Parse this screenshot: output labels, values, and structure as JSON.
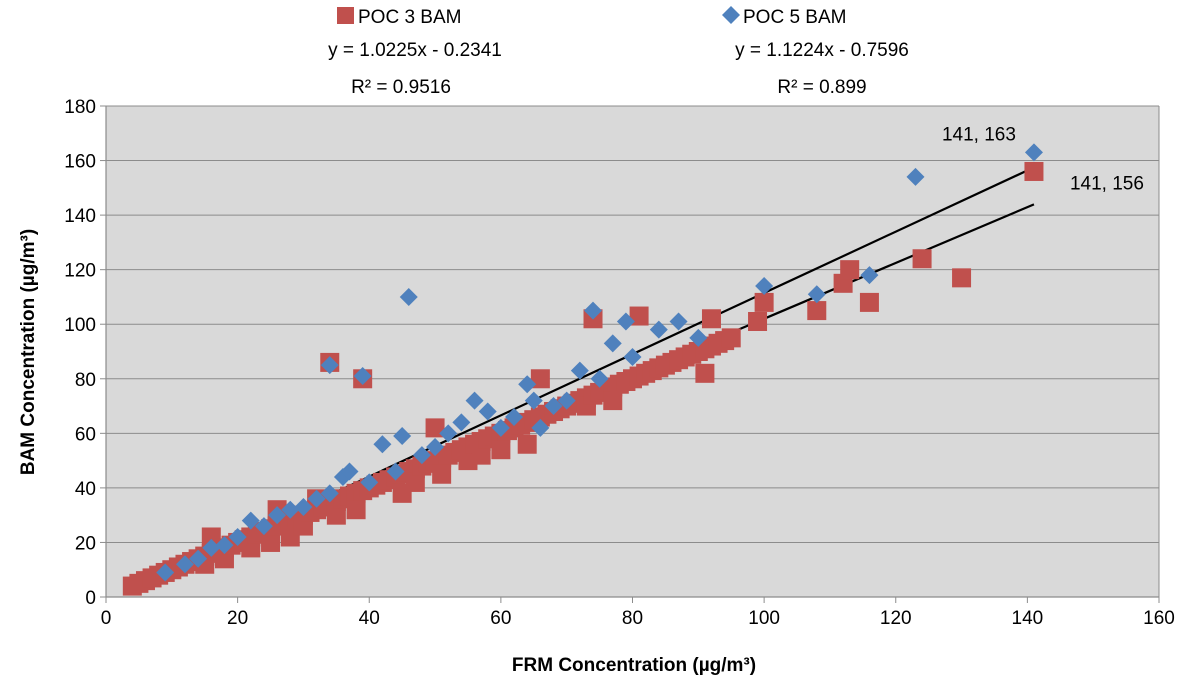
{
  "chart_data": {
    "type": "scatter",
    "xlabel": "FRM Concentration (µg/m³)",
    "ylabel": "BAM Concentration (µg/m³)",
    "xlim": [
      0,
      160
    ],
    "ylim": [
      0,
      180
    ],
    "xticks": [
      "0",
      "20",
      "40",
      "60",
      "80",
      "100",
      "120",
      "140",
      "160"
    ],
    "yticks": [
      "0",
      "20",
      "40",
      "60",
      "80",
      "100",
      "120",
      "140",
      "160",
      "180"
    ],
    "grid": true,
    "legend_position": "top",
    "colors": {
      "plot_bg": "#d9d9d9",
      "poc3": "#c0504d",
      "poc5": "#4f81bd",
      "trend": "#000000"
    },
    "series": [
      {
        "name": "POC 3 BAM",
        "marker": "square",
        "equation": "y = 1.0225x - 0.2341",
        "r2": "R² = 0.9516",
        "trend": {
          "slope": 1.0225,
          "intercept": -0.2341,
          "x_range": [
            4,
            141
          ]
        },
        "points": [
          [
            4,
            4
          ],
          [
            5,
            5
          ],
          [
            6,
            6
          ],
          [
            7,
            7
          ],
          [
            8,
            8
          ],
          [
            9,
            9
          ],
          [
            10,
            10
          ],
          [
            11,
            11
          ],
          [
            12,
            12
          ],
          [
            13,
            13
          ],
          [
            14,
            14
          ],
          [
            15,
            12
          ],
          [
            15,
            15
          ],
          [
            16,
            16
          ],
          [
            16,
            22
          ],
          [
            17,
            17
          ],
          [
            18,
            18
          ],
          [
            18,
            14
          ],
          [
            19,
            19
          ],
          [
            20,
            20
          ],
          [
            21,
            21
          ],
          [
            22,
            22
          ],
          [
            22,
            18
          ],
          [
            23,
            23
          ],
          [
            24,
            24
          ],
          [
            25,
            25
          ],
          [
            25,
            20
          ],
          [
            26,
            26
          ],
          [
            26,
            32
          ],
          [
            27,
            27
          ],
          [
            28,
            28
          ],
          [
            28,
            22
          ],
          [
            29,
            29
          ],
          [
            30,
            30
          ],
          [
            30,
            26
          ],
          [
            31,
            31
          ],
          [
            32,
            32
          ],
          [
            32,
            36
          ],
          [
            33,
            33
          ],
          [
            34,
            34
          ],
          [
            34,
            86
          ],
          [
            35,
            35
          ],
          [
            35,
            30
          ],
          [
            36,
            36
          ],
          [
            37,
            37
          ],
          [
            38,
            38
          ],
          [
            38,
            32
          ],
          [
            39,
            39
          ],
          [
            39,
            80
          ],
          [
            40,
            40
          ],
          [
            41,
            41
          ],
          [
            42,
            42
          ],
          [
            43,
            43
          ],
          [
            44,
            44
          ],
          [
            45,
            45
          ],
          [
            45,
            38
          ],
          [
            46,
            46
          ],
          [
            47,
            47
          ],
          [
            47,
            42
          ],
          [
            48,
            48
          ],
          [
            49,
            49
          ],
          [
            50,
            50
          ],
          [
            50,
            62
          ],
          [
            51,
            51
          ],
          [
            51,
            45
          ],
          [
            52,
            52
          ],
          [
            53,
            53
          ],
          [
            54,
            54
          ],
          [
            55,
            55
          ],
          [
            55,
            50
          ],
          [
            56,
            56
          ],
          [
            57,
            57
          ],
          [
            57,
            52
          ],
          [
            58,
            58
          ],
          [
            59,
            59
          ],
          [
            60,
            60
          ],
          [
            60,
            54
          ],
          [
            61,
            61
          ],
          [
            62,
            62
          ],
          [
            63,
            63
          ],
          [
            64,
            64
          ],
          [
            64,
            56
          ],
          [
            65,
            65
          ],
          [
            66,
            66
          ],
          [
            66,
            80
          ],
          [
            67,
            67
          ],
          [
            68,
            68
          ],
          [
            69,
            69
          ],
          [
            70,
            70
          ],
          [
            71,
            71
          ],
          [
            72,
            72
          ],
          [
            73,
            73
          ],
          [
            73,
            70
          ],
          [
            74,
            74
          ],
          [
            74,
            102
          ],
          [
            75,
            75
          ],
          [
            76,
            76
          ],
          [
            77,
            77
          ],
          [
            77,
            72
          ],
          [
            78,
            78
          ],
          [
            79,
            79
          ],
          [
            80,
            80
          ],
          [
            81,
            81
          ],
          [
            81,
            103
          ],
          [
            82,
            82
          ],
          [
            83,
            83
          ],
          [
            84,
            84
          ],
          [
            85,
            85
          ],
          [
            86,
            86
          ],
          [
            87,
            87
          ],
          [
            88,
            88
          ],
          [
            89,
            89
          ],
          [
            90,
            90
          ],
          [
            91,
            91
          ],
          [
            91,
            82
          ],
          [
            92,
            92
          ],
          [
            92,
            102
          ],
          [
            93,
            93
          ],
          [
            94,
            94
          ],
          [
            95,
            95
          ],
          [
            99,
            101
          ],
          [
            100,
            108
          ],
          [
            108,
            105
          ],
          [
            112,
            115
          ],
          [
            113,
            120
          ],
          [
            116,
            108
          ],
          [
            124,
            124
          ],
          [
            130,
            117
          ],
          [
            141,
            156
          ]
        ]
      },
      {
        "name": "POC 5 BAM",
        "marker": "diamond",
        "equation": "y = 1.1224x - 0.7596",
        "r2": "R² = 0.899",
        "trend": {
          "slope": 1.1224,
          "intercept": -0.7596,
          "x_range": [
            4,
            141
          ]
        },
        "points": [
          [
            9,
            9
          ],
          [
            12,
            12
          ],
          [
            14,
            14
          ],
          [
            16,
            18
          ],
          [
            18,
            19
          ],
          [
            20,
            22
          ],
          [
            22,
            28
          ],
          [
            24,
            26
          ],
          [
            26,
            30
          ],
          [
            28,
            32
          ],
          [
            30,
            33
          ],
          [
            32,
            36
          ],
          [
            34,
            38
          ],
          [
            34,
            85
          ],
          [
            36,
            44
          ],
          [
            37,
            46
          ],
          [
            39,
            81
          ],
          [
            40,
            42
          ],
          [
            42,
            56
          ],
          [
            44,
            46
          ],
          [
            45,
            59
          ],
          [
            46,
            110
          ],
          [
            48,
            52
          ],
          [
            50,
            55
          ],
          [
            52,
            60
          ],
          [
            54,
            64
          ],
          [
            56,
            72
          ],
          [
            58,
            68
          ],
          [
            60,
            62
          ],
          [
            62,
            66
          ],
          [
            64,
            78
          ],
          [
            65,
            72
          ],
          [
            66,
            62
          ],
          [
            68,
            70
          ],
          [
            70,
            72
          ],
          [
            72,
            83
          ],
          [
            74,
            105
          ],
          [
            75,
            80
          ],
          [
            77,
            93
          ],
          [
            79,
            101
          ],
          [
            80,
            88
          ],
          [
            84,
            98
          ],
          [
            87,
            101
          ],
          [
            90,
            95
          ],
          [
            100,
            114
          ],
          [
            108,
            111
          ],
          [
            116,
            118
          ],
          [
            123,
            154
          ],
          [
            141,
            163
          ]
        ]
      }
    ],
    "annotations": [
      {
        "text": "141, 163",
        "x": 141,
        "y": 163
      },
      {
        "text": "141, 156",
        "x": 141,
        "y": 156
      }
    ]
  }
}
